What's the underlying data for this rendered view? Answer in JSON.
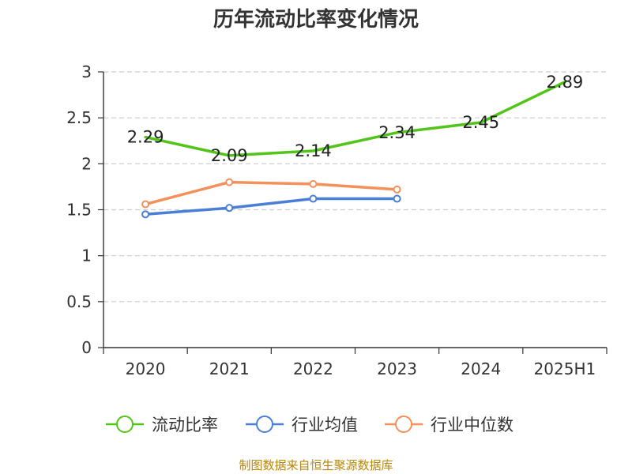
{
  "chart_data": {
    "type": "line",
    "title": "历年流动比率变化情况",
    "categories": [
      "2020",
      "2021",
      "2022",
      "2023",
      "2024",
      "2025H1"
    ],
    "ylim": [
      0,
      3
    ],
    "yticks": [
      0,
      0.5,
      1,
      1.5,
      2,
      2.5,
      3
    ],
    "ytick_labels": [
      "0",
      "0.5",
      "1",
      "1.5",
      "2",
      "2.5",
      "3"
    ],
    "grid": true,
    "legend_position": "bottom",
    "series": [
      {
        "name": "流动比率",
        "color": "#52c41a",
        "values": [
          2.29,
          2.09,
          2.14,
          2.34,
          2.45,
          2.89
        ],
        "labels": [
          "2.29",
          "2.09",
          "2.14",
          "2.34",
          "2.45",
          "2.89"
        ],
        "show_markers": false
      },
      {
        "name": "行业均值",
        "color": "#4a7fd6",
        "values": [
          1.45,
          1.52,
          1.62,
          1.62,
          null,
          null
        ],
        "show_markers": true
      },
      {
        "name": "行业中位数",
        "color": "#f4905a",
        "values": [
          1.56,
          1.8,
          1.78,
          1.72,
          null,
          null
        ],
        "show_markers": true
      }
    ],
    "source": "制图数据来自恒生聚源数据库"
  }
}
